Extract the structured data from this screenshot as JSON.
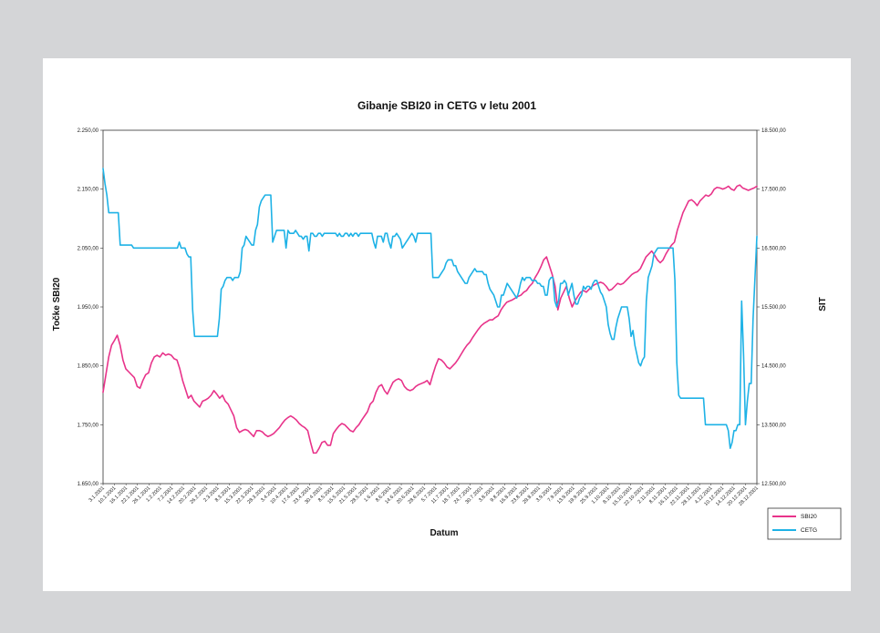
{
  "chart_data": {
    "type": "line",
    "title": "Gibanje SBI20 in CETG v letu 2001",
    "xlabel": "Datum",
    "ylabel_left": "Točke SBI20",
    "ylabel_right": "SIT",
    "ylim_left": [
      1650,
      2250
    ],
    "ylim_right": [
      12500,
      18500
    ],
    "yticks_left": [
      "1.650,00",
      "1.750,00",
      "1.850,00",
      "1.950,00",
      "2.050,00",
      "2.150,00",
      "2.250,00"
    ],
    "yticks_right": [
      "12.500,00",
      "13.500,00",
      "14.500,00",
      "15.500,00",
      "16.500,00",
      "17.500,00",
      "18.500,00"
    ],
    "x_ticks": [
      "3.1.2001",
      "10.1.2001",
      "16.1.2001",
      "22.1.2001",
      "26.1.2001",
      "1.2.2001",
      "7.2.2001",
      "14.2.2001",
      "20.2.2001",
      "26.2.2001",
      "2.3.2001",
      "8.3.2001",
      "15.3.2001",
      "22.3.2001",
      "28.3.2001",
      "3.4.2001",
      "10.4.2001",
      "17.4.2001",
      "23.4.2001",
      "30.4.2001",
      "8.5.2001",
      "15.5.2001",
      "21.5.2001",
      "28.5.2001",
      "1.6.2001",
      "8.6.2001",
      "14.6.2001",
      "20.6.2001",
      "28.6.2001",
      "5.7.2001",
      "11.7.2001",
      "18.7.2001",
      "24.7.2001",
      "30.7.2001",
      "3.8.2001",
      "9.8.2001",
      "16.8.2001",
      "23.8.2001",
      "29.8.2001",
      "3.9.2001",
      "7.9.2001",
      "13.9.2001",
      "19.9.2001",
      "25.9.2001",
      "1.10.2001",
      "8.10.2001",
      "15.10.2001",
      "22.10.2001",
      "2.11.2001",
      "8.11.2001",
      "16.11.2001",
      "22.11.2001",
      "28.11.2001",
      "4.12.2001",
      "10.12.2001",
      "14.12.2001",
      "20.12.2001",
      "28.12.2001"
    ],
    "legend_position": "bottom-right",
    "series": [
      {
        "name": "SBI20",
        "axis": "left",
        "color": "#e8338a",
        "values": [
          1805,
          1835,
          1865,
          1885,
          1893,
          1902,
          1885,
          1860,
          1845,
          1840,
          1835,
          1830,
          1815,
          1812,
          1825,
          1835,
          1838,
          1855,
          1865,
          1868,
          1865,
          1872,
          1868,
          1870,
          1868,
          1862,
          1860,
          1845,
          1825,
          1810,
          1795,
          1800,
          1790,
          1785,
          1780,
          1790,
          1792,
          1795,
          1800,
          1808,
          1802,
          1795,
          1800,
          1790,
          1785,
          1775,
          1765,
          1745,
          1737,
          1740,
          1742,
          1740,
          1735,
          1730,
          1740,
          1740,
          1738,
          1733,
          1730,
          1732,
          1735,
          1740,
          1745,
          1752,
          1758,
          1762,
          1765,
          1762,
          1758,
          1752,
          1748,
          1745,
          1740,
          1720,
          1702,
          1702,
          1710,
          1720,
          1722,
          1715,
          1715,
          1735,
          1742,
          1748,
          1752,
          1750,
          1745,
          1740,
          1738,
          1745,
          1750,
          1758,
          1765,
          1772,
          1785,
          1790,
          1805,
          1815,
          1818,
          1808,
          1802,
          1812,
          1822,
          1826,
          1828,
          1825,
          1815,
          1810,
          1808,
          1810,
          1815,
          1818,
          1820,
          1822,
          1825,
          1818,
          1835,
          1850,
          1862,
          1860,
          1855,
          1848,
          1845,
          1850,
          1855,
          1862,
          1870,
          1878,
          1885,
          1890,
          1898,
          1905,
          1912,
          1918,
          1922,
          1925,
          1928,
          1928,
          1932,
          1935,
          1945,
          1952,
          1958,
          1960,
          1962,
          1965,
          1968,
          1970,
          1975,
          1978,
          1985,
          1990,
          2000,
          2008,
          2018,
          2030,
          2035,
          2020,
          2005,
          1985,
          1945,
          1965,
          1975,
          1985,
          1965,
          1950,
          1960,
          1968,
          1975,
          1978,
          1975,
          1980,
          1985,
          1988,
          1990,
          1992,
          1990,
          1985,
          1978,
          1980,
          1985,
          1990,
          1988,
          1990,
          1995,
          2000,
          2005,
          2008,
          2010,
          2015,
          2025,
          2035,
          2040,
          2045,
          2038,
          2030,
          2025,
          2030,
          2040,
          2048,
          2055,
          2060,
          2080,
          2095,
          2110,
          2120,
          2130,
          2132,
          2128,
          2122,
          2130,
          2135,
          2140,
          2138,
          2142,
          2150,
          2153,
          2152,
          2150,
          2152,
          2155,
          2150,
          2148,
          2155,
          2157,
          2152,
          2150,
          2148,
          2150,
          2152,
          2155
        ]
      },
      {
        "name": "CETG",
        "axis": "right",
        "color": "#1eb2e6",
        "values": [
          17850,
          17600,
          17400,
          17100,
          17100,
          17100,
          17100,
          17100,
          17100,
          16550,
          16550,
          16550,
          16550,
          16550,
          16550,
          16550,
          16500,
          16500,
          16500,
          16500,
          16500,
          16500,
          16500,
          16500,
          16500,
          16500,
          16500,
          16500,
          16500,
          16500,
          16500,
          16500,
          16500,
          16500,
          16500,
          16500,
          16500,
          16500,
          16500,
          16500,
          16600,
          16500,
          16500,
          16500,
          16400,
          16350,
          16350,
          15450,
          15000,
          15000,
          15000,
          15000,
          15000,
          15000,
          15000,
          15000,
          15000,
          15000,
          15000,
          15000,
          15000,
          15300,
          15800,
          15850,
          15950,
          16000,
          16000,
          16000,
          15950,
          16000,
          16000,
          16000,
          16100,
          16500,
          16550,
          16700,
          16650,
          16600,
          16550,
          16550,
          16800,
          16900,
          17200,
          17300,
          17350,
          17400,
          17400,
          17400,
          17400,
          16600,
          16700,
          16800,
          16800,
          16800,
          16800,
          16800,
          16500,
          16800,
          16750,
          16750,
          16750,
          16800,
          16750,
          16700,
          16700,
          16650,
          16700,
          16700,
          16450,
          16750,
          16750,
          16700,
          16700,
          16750,
          16750,
          16700,
          16750,
          16750,
          16750,
          16750,
          16750,
          16750,
          16750,
          16700,
          16750,
          16700,
          16700,
          16750,
          16750,
          16700,
          16750,
          16700,
          16750,
          16750,
          16700,
          16750,
          16750,
          16750,
          16750,
          16750,
          16750,
          16750,
          16600,
          16500,
          16700,
          16700,
          16700,
          16600,
          16750,
          16750,
          16600,
          16500,
          16700,
          16700,
          16750,
          16700,
          16650,
          16500,
          16550,
          16600,
          16650,
          16700,
          16750,
          16700,
          16600,
          16750,
          16750,
          16750,
          16750,
          16750,
          16750,
          16750,
          16750,
          16000,
          16000,
          16000,
          16000,
          16050,
          16100,
          16150,
          16250,
          16300,
          16300,
          16300,
          16200,
          16200,
          16100,
          16050,
          16000,
          15950,
          15900,
          15900,
          16000,
          16050,
          16100,
          16150,
          16100,
          16100,
          16100,
          16100,
          16050,
          16050,
          15900,
          15800,
          15750,
          15700,
          15600,
          15500,
          15500,
          15700,
          15700,
          15800,
          15900,
          15850,
          15800,
          15750,
          15700,
          15650,
          15750,
          15900,
          16000,
          15950,
          16000,
          16000,
          16000,
          15950,
          15950,
          15950,
          15900,
          15900,
          15850,
          15850,
          15700,
          15700,
          15950,
          16000,
          16000,
          15600,
          15500,
          15600,
          15900,
          15900,
          15950,
          15900,
          15700,
          15800,
          15900,
          15700,
          15550,
          15550,
          15650,
          15700,
          15850,
          15800,
          15850,
          15850,
          15800,
          15900,
          15950,
          15950,
          15850,
          15750,
          15700,
          15600,
          15500,
          15200,
          15050,
          14950,
          14950,
          15150,
          15300,
          15400,
          15500,
          15500,
          15500,
          15500,
          15300,
          15000,
          15100,
          14850,
          14700,
          14550,
          14500,
          14600,
          14650,
          15600,
          16000,
          16100,
          16200,
          16400,
          16450,
          16500,
          16500,
          16500,
          16500,
          16500,
          16500,
          16500,
          16500,
          16500,
          15950,
          14550,
          14000,
          13950,
          13950,
          13950,
          13950,
          13950,
          13950,
          13950,
          13950,
          13950,
          13950,
          13950,
          13950,
          13950,
          13500,
          13500,
          13500,
          13500,
          13500,
          13500,
          13500,
          13500,
          13500,
          13500,
          13500,
          13500,
          13400,
          13100,
          13200,
          13400,
          13400,
          13500,
          13500,
          15600,
          14700,
          13500,
          13900,
          14200,
          14200,
          15300,
          16000,
          16700
        ]
      }
    ]
  }
}
